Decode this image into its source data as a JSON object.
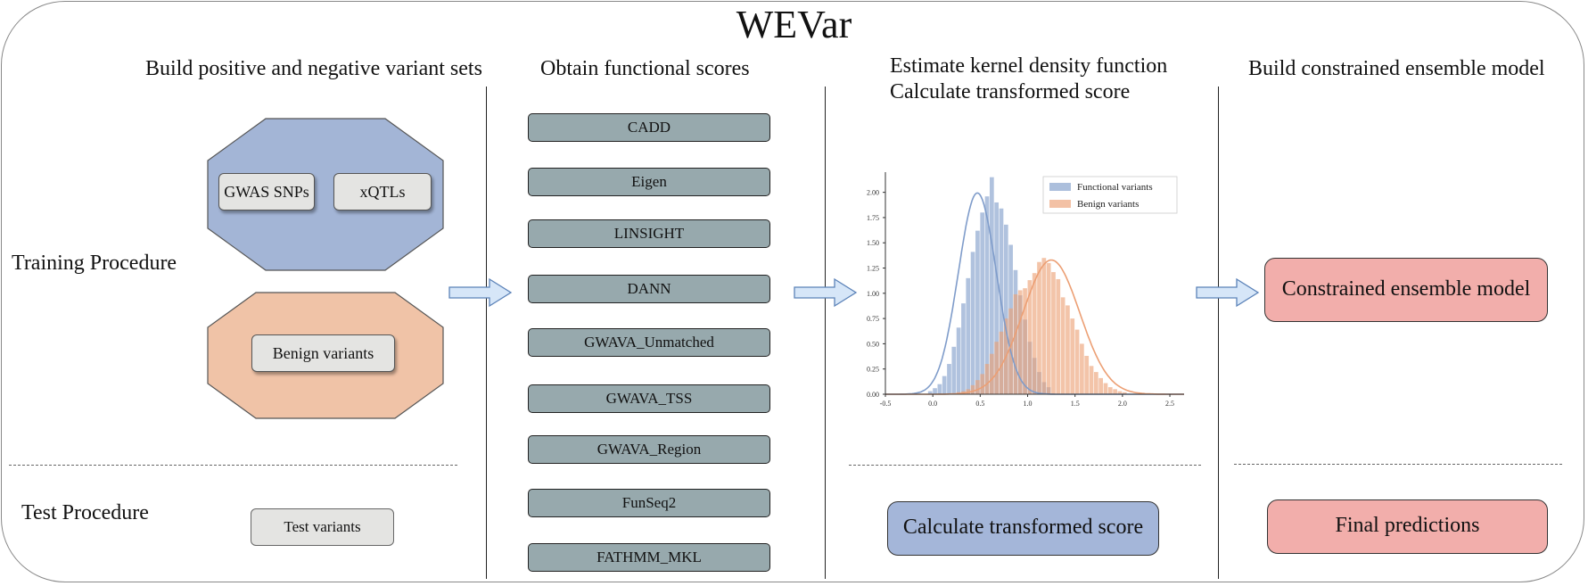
{
  "title": "WEVar",
  "column_headings": {
    "build_sets": "Build positive and negative variant sets",
    "functional_scores": "Obtain functional scores",
    "kde_line1": "Estimate kernel density function",
    "kde_line2": "Calculate transformed score",
    "ensemble": "Build constrained ensemble model"
  },
  "row_labels": {
    "training": "Training  Procedure",
    "test": "Test  Procedure"
  },
  "positive_sets": [
    "GWAS SNPs",
    "xQTLs"
  ],
  "negative_set": "Benign variants",
  "test_variants": "Test variants",
  "scores": [
    "CADD",
    "Eigen",
    "LINSIGHT",
    "DANN",
    "GWAVA_Unmatched",
    "GWAVA_TSS",
    "GWAVA_Region",
    "FunSeq2",
    "FATHMM_MKL"
  ],
  "ensemble_model": "Constrained ensemble model",
  "calc_transformed": "Calculate transformed score",
  "final_predictions": "Final predictions",
  "colors": {
    "positive": "#a3b5d6",
    "negative": "#f0c3a7",
    "score_box": "#97a9ad",
    "ensemble": "#f2aeab",
    "calc": "#a4b6d9",
    "arrow_fill": "#d6e6f8",
    "arrow_stroke": "#5b82b8",
    "functional_series": "#7f9cca",
    "benign_series": "#ec9f74"
  },
  "chart_data": {
    "type": "histogram",
    "title": "",
    "xlabel": "",
    "ylabel": "",
    "xlim": [
      -0.5,
      2.65
    ],
    "ylim": [
      0,
      2.2
    ],
    "xticks": [
      "-0.5",
      "0.0",
      "0.5",
      "1.0",
      "1.5",
      "2.0",
      "2.5"
    ],
    "yticks": [
      "0.00",
      "0.25",
      "0.50",
      "0.75",
      "1.00",
      "1.25",
      "1.50",
      "1.75",
      "2.00"
    ],
    "bin_width": 0.05,
    "legend": [
      "Functional variants",
      "Benign variants"
    ],
    "legend_position": "top-right",
    "series": [
      {
        "name": "Functional variants",
        "kde_mean": 0.47,
        "kde_sd": 0.2,
        "bins_start": -0.05,
        "values": [
          0.03,
          0.06,
          0.1,
          0.18,
          0.3,
          0.47,
          0.66,
          0.9,
          1.15,
          1.41,
          1.62,
          1.8,
          1.96,
          2.15,
          1.9,
          1.84,
          1.68,
          1.48,
          1.23,
          0.98,
          0.74,
          0.52,
          0.36,
          0.22,
          0.12,
          0.07
        ]
      },
      {
        "name": "Benign variants",
        "kde_mean": 1.25,
        "kde_sd": 0.3,
        "bins_start": 0.25,
        "values": [
          0.02,
          0.03,
          0.05,
          0.09,
          0.14,
          0.2,
          0.3,
          0.4,
          0.52,
          0.62,
          0.75,
          0.85,
          0.99,
          1.03,
          1.05,
          1.13,
          1.2,
          1.31,
          1.35,
          1.3,
          1.21,
          1.14,
          0.96,
          0.88,
          0.75,
          0.64,
          0.5,
          0.38,
          0.28,
          0.22,
          0.16,
          0.11,
          0.07,
          0.05,
          0.03,
          0.02
        ]
      }
    ]
  }
}
